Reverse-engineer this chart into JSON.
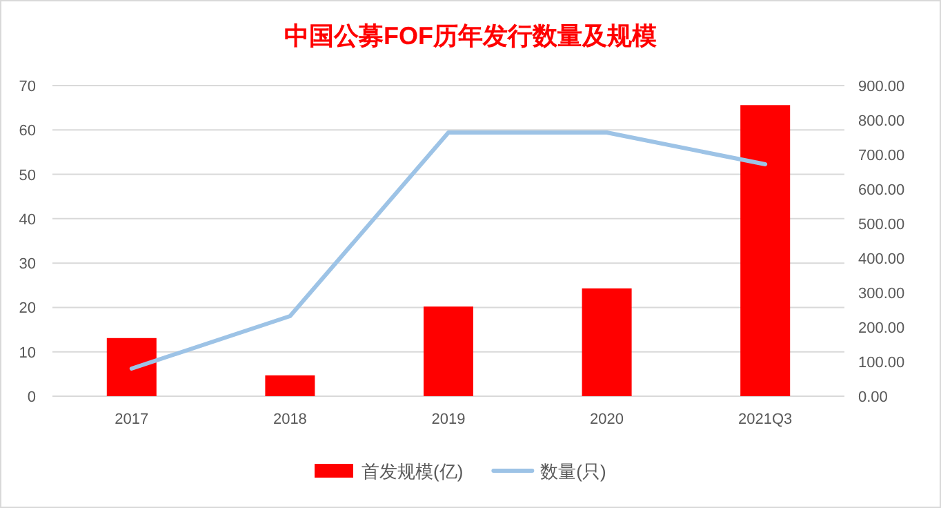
{
  "chart_data": {
    "type": "bar",
    "title": "中国公募FOF历年发行数量及规模",
    "categories": [
      "2017",
      "2018",
      "2019",
      "2020",
      "2021Q3"
    ],
    "series": [
      {
        "name": "首发规模(亿)",
        "color": "#ff0000",
        "values": [
          13.1,
          4.7,
          20.2,
          24.3,
          65.6
        ]
      },
      {
        "name": "数量(只)",
        "type": "line",
        "axis": "y2",
        "color": "#9dc3e6",
        "values": [
          80,
          232,
          764,
          764,
          672
        ]
      }
    ],
    "ylim": [
      0,
      70
    ],
    "yticks": [
      0,
      10,
      20,
      30,
      40,
      50,
      60,
      70
    ],
    "y2lim": [
      0,
      900
    ],
    "y2ticks": [
      {
        "value": 0,
        "label": "0.00"
      },
      {
        "value": 100,
        "label": "100.00"
      },
      {
        "value": 200,
        "label": "200.00"
      },
      {
        "value": 300,
        "label": "300.00"
      },
      {
        "value": 400,
        "label": "400.00"
      },
      {
        "value": 500,
        "label": "500.00"
      },
      {
        "value": 600,
        "label": "600.00"
      },
      {
        "value": 700,
        "label": "700.00"
      },
      {
        "value": 800,
        "label": "800.00"
      },
      {
        "value": 900,
        "label": "900.00"
      }
    ],
    "grid": "y",
    "legend": "bottom"
  }
}
